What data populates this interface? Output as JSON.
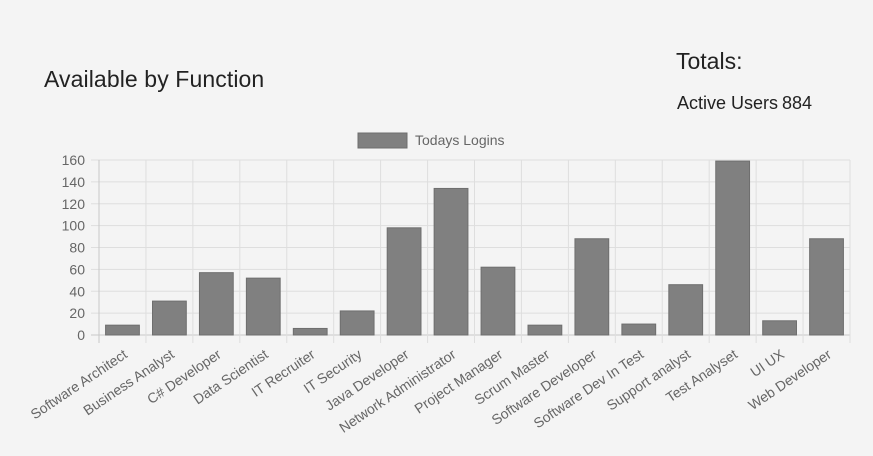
{
  "page": {
    "title": "Available by Function"
  },
  "totals": {
    "heading": "Totals:",
    "active_users_label": "Active Users",
    "active_users_value": "884"
  },
  "chart_data": {
    "type": "bar",
    "title": "",
    "xlabel": "",
    "ylabel": "",
    "legend_position": "top",
    "grid": true,
    "ylim": [
      0,
      160
    ],
    "yticks": [
      0,
      20,
      40,
      60,
      80,
      100,
      120,
      140,
      160
    ],
    "categories": [
      "Software Architect",
      "Business Analyst",
      "C# Developer",
      "Data Scientist",
      "IT Recruiter",
      "IT Security",
      "Java Developer",
      "Network Administrator",
      "Project Manager",
      "Scrum Master",
      "Software Developer",
      "Software Dev In Test",
      "Support analyst",
      "Test Analyset",
      "UI UX",
      "Web Developer"
    ],
    "series": [
      {
        "name": "Todays Logins",
        "color": "#808080",
        "values": [
          9,
          31,
          57,
          52,
          6,
          22,
          98,
          134,
          62,
          9,
          88,
          10,
          46,
          159,
          13,
          88
        ]
      }
    ]
  }
}
